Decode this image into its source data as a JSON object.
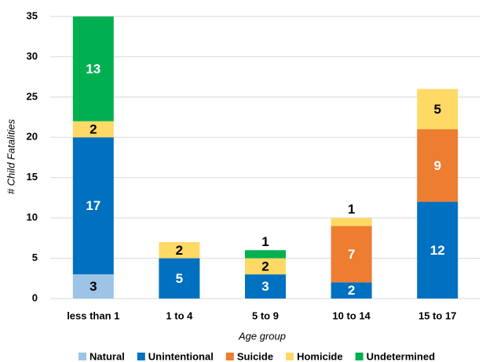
{
  "chart_data": {
    "type": "stacked_bar",
    "categories": [
      "less than 1",
      "1 to 4",
      "5 to 9",
      "10 to 14",
      "15 to 17"
    ],
    "series": [
      {
        "name": "Natural",
        "color": "#9dc3e6",
        "values": [
          3,
          0,
          0,
          0,
          0
        ]
      },
      {
        "name": "Unintentional",
        "color": "#0070c0",
        "values": [
          17,
          5,
          3,
          2,
          12
        ]
      },
      {
        "name": "Suicide",
        "color": "#ed7d31",
        "values": [
          0,
          0,
          0,
          7,
          9
        ]
      },
      {
        "name": "Homicide",
        "color": "#ffd966",
        "values": [
          2,
          2,
          2,
          1,
          5
        ]
      },
      {
        "name": "Undetermined",
        "color": "#00b050",
        "values": [
          13,
          0,
          1,
          0,
          0
        ]
      }
    ],
    "ylim": [
      0,
      35
    ],
    "yticks": [
      0,
      5,
      10,
      15,
      20,
      25,
      30,
      35
    ],
    "x_label": "Age group",
    "y_label": "# Child Fatalities",
    "grid": true,
    "legend": "bottom"
  }
}
